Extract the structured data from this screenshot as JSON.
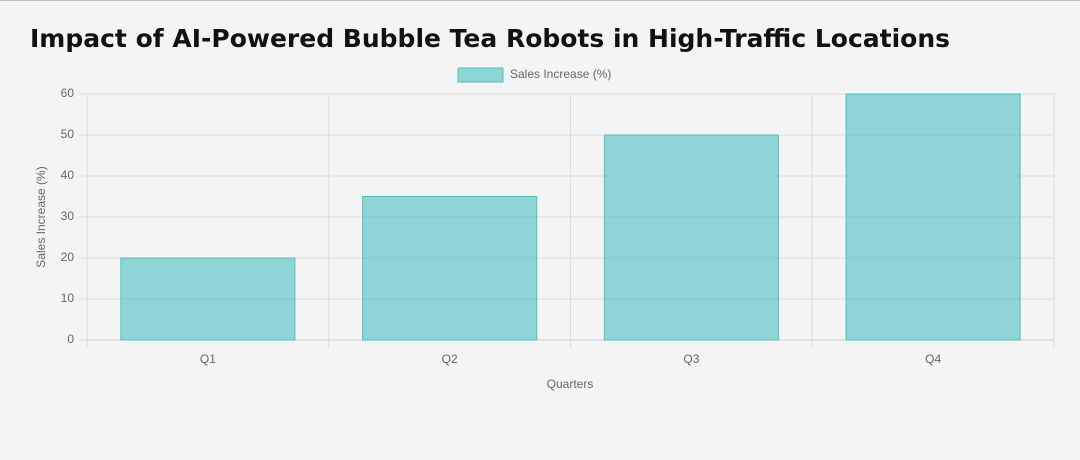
{
  "chart_data": {
    "type": "bar",
    "title": "Impact of AI-Powered Bubble Tea Robots in High-Traffic Locations",
    "categories": [
      "Q1",
      "Q2",
      "Q3",
      "Q4"
    ],
    "series": [
      {
        "name": "Sales Increase (%)",
        "color": "#4bc0c0",
        "values": [
          20,
          35,
          50,
          60
        ]
      }
    ],
    "x_label": "Quarters",
    "y_label": "Sales Increase (%)",
    "ylim": [
      0,
      60
    ],
    "yticks": [
      0,
      10,
      20,
      30,
      40,
      50,
      60
    ],
    "grid": true,
    "legend": "top"
  }
}
